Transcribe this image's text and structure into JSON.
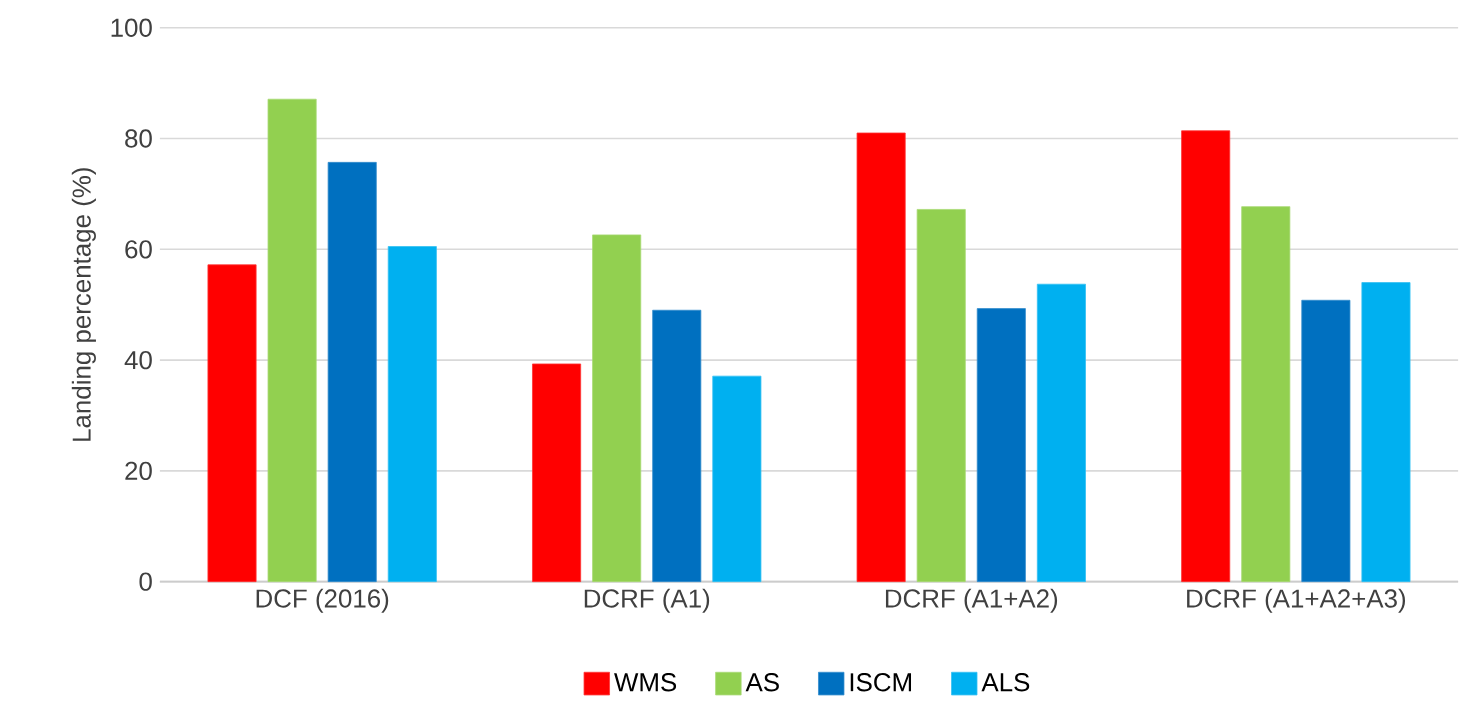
{
  "chart_data": {
    "type": "bar",
    "ylabel": "Landing percentage (%)",
    "categories": [
      "DCF (2016)",
      "DCRF (A1)",
      "DCRF (A1+A2)",
      "DCRF (A1+A2+A3)"
    ],
    "series": [
      {
        "name": "WMS",
        "color": "#ff0000",
        "values": [
          57.2,
          39.3,
          81.0,
          81.4
        ]
      },
      {
        "name": "AS",
        "color": "#92d050",
        "values": [
          87.1,
          62.6,
          67.2,
          67.7
        ]
      },
      {
        "name": "ISCM",
        "color": "#0070c0",
        "values": [
          75.7,
          49.0,
          49.3,
          50.8
        ]
      },
      {
        "name": "ALS",
        "color": "#00b0f0",
        "values": [
          60.5,
          37.1,
          53.7,
          54.0
        ]
      }
    ],
    "ylim": [
      0,
      100
    ],
    "yticks": [
      0,
      20,
      40,
      60,
      80,
      100
    ],
    "grid": "y",
    "legend": "bottom"
  }
}
